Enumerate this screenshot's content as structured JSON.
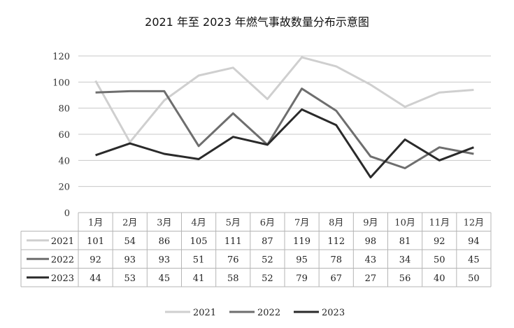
{
  "chart_data": {
    "type": "line",
    "title": "2021 年至 2023 年燃气事故数量分布示意图",
    "categories": [
      "1月",
      "2月",
      "3月",
      "4月",
      "5月",
      "6月",
      "7月",
      "8月",
      "9月",
      "10月",
      "11月",
      "12月"
    ],
    "ylim": [
      0,
      120
    ],
    "yticks": [
      0,
      20,
      40,
      60,
      80,
      100,
      120
    ],
    "grid": true,
    "legend_position": "bottom",
    "data_table": true,
    "series": [
      {
        "name": "2021",
        "color": "#cfcfcf",
        "values": [
          101,
          54,
          86,
          105,
          111,
          87,
          119,
          112,
          98,
          81,
          92,
          94
        ]
      },
      {
        "name": "2022",
        "color": "#6e6e6e",
        "values": [
          92,
          93,
          93,
          51,
          76,
          52,
          95,
          78,
          43,
          34,
          50,
          45
        ]
      },
      {
        "name": "2023",
        "color": "#2a2a2a",
        "values": [
          44,
          53,
          45,
          41,
          58,
          52,
          79,
          67,
          27,
          56,
          40,
          50
        ]
      }
    ]
  }
}
